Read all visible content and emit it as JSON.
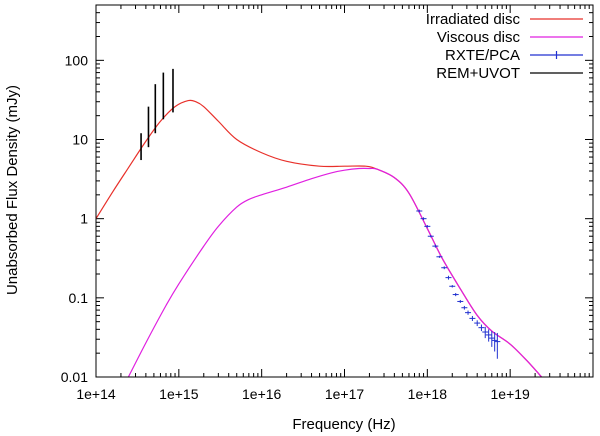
{
  "chart_data": {
    "type": "line",
    "xlabel": "Frequency (Hz)",
    "ylabel": "Unabsorbed Flux Density (mJy)",
    "xscale": "log",
    "yscale": "log",
    "xlim": [
      100000000000000.0,
      1e+20
    ],
    "ylim": [
      0.01,
      500
    ],
    "x_ticks": [
      {
        "value": 100000000000000.0,
        "label": "1e+14"
      },
      {
        "value": 1000000000000000.0,
        "label": "1e+15"
      },
      {
        "value": 1e+16,
        "label": "1e+16"
      },
      {
        "value": 1e+17,
        "label": "1e+17"
      },
      {
        "value": 1e+18,
        "label": "1e+18"
      },
      {
        "value": 1e+19,
        "label": "1e+19"
      }
    ],
    "y_ticks": [
      {
        "value": 0.01,
        "label": "0.01"
      },
      {
        "value": 0.1,
        "label": "0.1"
      },
      {
        "value": 1,
        "label": "1"
      },
      {
        "value": 10,
        "label": "10"
      },
      {
        "value": 100,
        "label": "100"
      }
    ],
    "legend_position": "top-right",
    "series": [
      {
        "name": "Irradiated disc",
        "color": "#e8302a",
        "style": "line",
        "x": [
          100000000000000.0,
          160000000000000.0,
          250000000000000.0,
          400000000000000.0,
          600000000000000.0,
          900000000000000.0,
          1300000000000000.0,
          1600000000000000.0,
          2000000000000000.0,
          3000000000000000.0,
          5000000000000000.0,
          1e+16,
          2e+16,
          5e+16,
          1e+17,
          1.8e+17,
          2.5e+17,
          4e+17,
          6e+17,
          1e+18,
          1.5e+18,
          2.5e+18,
          4e+18,
          6e+18,
          1e+19,
          1.6e+19,
          2.5e+19
        ],
        "y": [
          1.0,
          2.2,
          4.5,
          9.5,
          17,
          26,
          31,
          30,
          26,
          17,
          10,
          6.8,
          5.3,
          4.6,
          4.6,
          4.6,
          4.2,
          3.3,
          2.1,
          0.75,
          0.32,
          0.13,
          0.06,
          0.038,
          0.026,
          0.016,
          0.0095
        ]
      },
      {
        "name": "Viscous disc",
        "color": "#e020e0",
        "style": "line",
        "x": [
          240000000000000.0,
          400000000000000.0,
          700000000000000.0,
          1000000000000000.0,
          2000000000000000.0,
          3000000000000000.0,
          5000000000000000.0,
          7000000000000000.0,
          1e+16,
          2e+16,
          4e+16,
          7e+16,
          1e+17,
          1.5e+17,
          2e+17,
          2.5e+17,
          4e+17,
          6e+17,
          1e+18,
          1.5e+18,
          2.5e+18,
          4e+18,
          6e+18,
          1e+19,
          1.6e+19,
          2.5e+19
        ],
        "y": [
          0.0095,
          0.027,
          0.08,
          0.15,
          0.45,
          0.8,
          1.4,
          1.75,
          2.0,
          2.5,
          3.2,
          3.8,
          4.1,
          4.3,
          4.3,
          4.2,
          3.3,
          2.1,
          0.75,
          0.32,
          0.13,
          0.06,
          0.038,
          0.026,
          0.016,
          0.0095
        ]
      },
      {
        "name": "RXTE/PCA",
        "color": "#2030d0",
        "style": "points-errorbars",
        "x": [
          8e+17,
          9e+17,
          1e+18,
          1.1e+18,
          1.25e+18,
          1.4e+18,
          1.6e+18,
          1.8e+18,
          2e+18,
          2.2e+18,
          2.5e+18,
          2.8e+18,
          3.1e+18,
          3.5e+18,
          4e+18,
          4.5e+18,
          5e+18,
          5.5e+18,
          6e+18,
          6.5e+18,
          7e+18
        ],
        "y": [
          1.25,
          1.0,
          0.8,
          0.6,
          0.45,
          0.33,
          0.24,
          0.18,
          0.14,
          0.11,
          0.09,
          0.075,
          0.065,
          0.055,
          0.048,
          0.042,
          0.037,
          0.034,
          0.031,
          0.029,
          0.028
        ],
        "yerr_low": [
          1.2,
          0.96,
          0.77,
          0.58,
          0.43,
          0.32,
          0.23,
          0.17,
          0.135,
          0.105,
          0.086,
          0.071,
          0.061,
          0.051,
          0.044,
          0.038,
          0.031,
          0.028,
          0.024,
          0.021,
          0.017
        ],
        "yerr_high": [
          1.3,
          1.04,
          0.83,
          0.62,
          0.47,
          0.34,
          0.25,
          0.19,
          0.145,
          0.115,
          0.094,
          0.079,
          0.069,
          0.059,
          0.052,
          0.046,
          0.043,
          0.04,
          0.038,
          0.037,
          0.036
        ]
      },
      {
        "name": "REM+UVOT",
        "color": "#000000",
        "style": "errorbars",
        "x": [
          350000000000000.0,
          430000000000000.0,
          520000000000000.0,
          650000000000000.0,
          850000000000000.0
        ],
        "y": [
          8.5,
          14,
          22,
          30,
          36
        ],
        "yerr_low": [
          5.5,
          8,
          12,
          18,
          22
        ],
        "yerr_high": [
          12,
          26,
          50,
          70,
          78
        ]
      }
    ]
  }
}
